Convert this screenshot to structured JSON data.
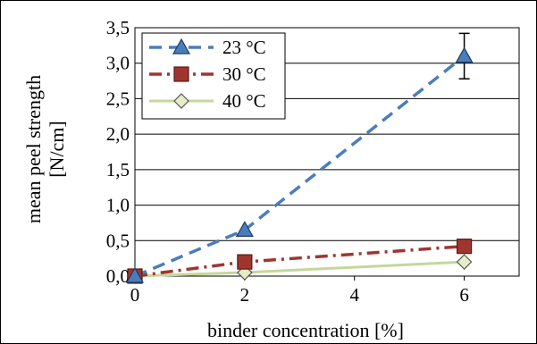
{
  "chart_data": {
    "type": "line",
    "xlabel": "binder concentration [%]",
    "ylabel_line1": "mean peel strength",
    "ylabel_line2": "[N/cm]",
    "xlim": [
      0,
      7
    ],
    "ylim": [
      0,
      3.5
    ],
    "x_ticks": [
      "0",
      "2",
      "4",
      "6"
    ],
    "y_ticks": [
      "0,0",
      "0,5",
      "1,0",
      "1,5",
      "2,0",
      "2,5",
      "3,0",
      "3,5"
    ],
    "grid": "horizontal",
    "legend_position": "top-left",
    "series": [
      {
        "name": "23 °C",
        "color": "#4a7ebb",
        "marker": "triangle",
        "line_style": "dashed",
        "points": [
          {
            "x": 0,
            "y": 0.0
          },
          {
            "x": 2,
            "y": 0.65
          },
          {
            "x": 6,
            "y": 3.1,
            "error": 0.32
          }
        ]
      },
      {
        "name": "30 °C",
        "color": "#a0352f",
        "marker": "square",
        "line_style": "dash-dot",
        "points": [
          {
            "x": 0,
            "y": 0.0
          },
          {
            "x": 2,
            "y": 0.2
          },
          {
            "x": 6,
            "y": 0.42
          }
        ]
      },
      {
        "name": "40 °C",
        "color": "#c4d79b",
        "marker": "diamond",
        "line_style": "solid",
        "points": [
          {
            "x": 0,
            "y": 0.0
          },
          {
            "x": 2,
            "y": 0.05
          },
          {
            "x": 6,
            "y": 0.2
          }
        ]
      }
    ]
  }
}
